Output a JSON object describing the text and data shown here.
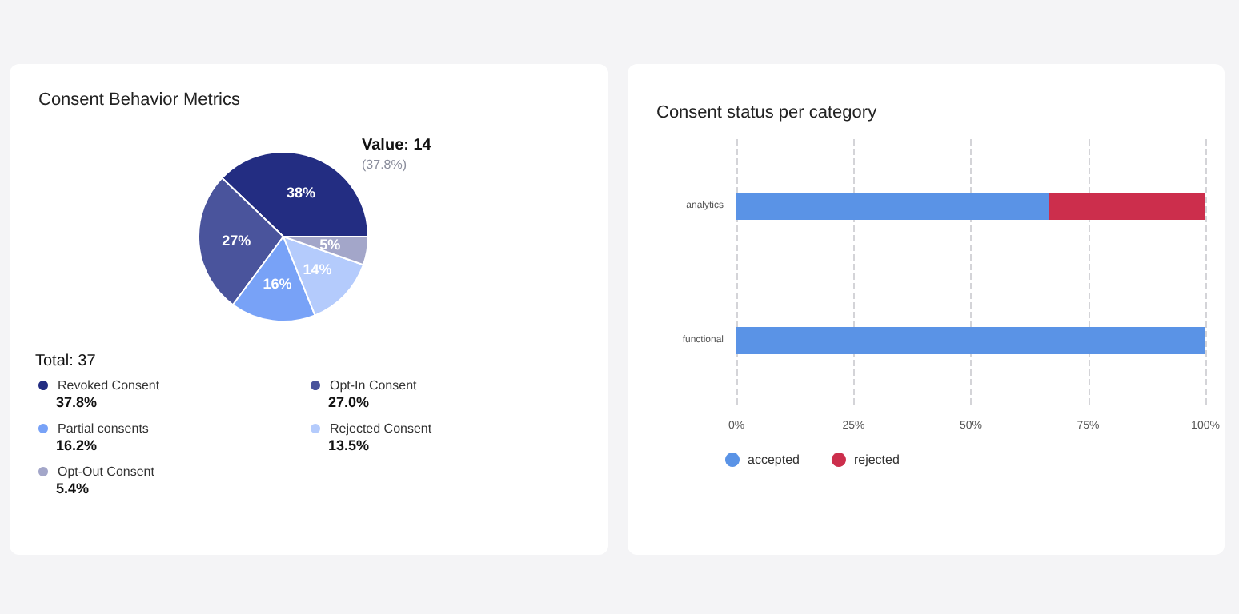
{
  "chart_data": [
    {
      "type": "pie",
      "title": "Consent Behavior Metrics",
      "categories": [
        "Revoked Consent",
        "Opt-In Consent",
        "Partial consents",
        "Rejected Consent",
        "Opt-Out Consent"
      ],
      "values": [
        37.8,
        27.0,
        16.2,
        13.5,
        5.4
      ],
      "colors": [
        "#232d82",
        "#4a549c",
        "#78a2f7",
        "#b4cbfc",
        "#a3a6c9"
      ],
      "value_labels": [
        "38%",
        "27%",
        "16%",
        "14%",
        "5%"
      ],
      "legend": "bottom",
      "annotations": [
        "Value: 14",
        "(37.8%)",
        "Total: 37",
        "37.8%",
        "27.0%",
        "16.2%",
        "13.5%",
        "5.4%"
      ]
    },
    {
      "type": "bar",
      "title": "Consent status per category",
      "orientation": "horizontal",
      "stacked": true,
      "categories": [
        "analytics",
        "functional"
      ],
      "series": [
        {
          "name": "accepted",
          "color": "#5a93e6",
          "values": [
            66.7,
            100
          ]
        },
        {
          "name": "rejected",
          "color": "#cc2e4c",
          "values": [
            33.3,
            0
          ]
        }
      ],
      "xlim": [
        0,
        100
      ],
      "xticks": [
        {
          "value": 0,
          "label": "0%"
        },
        {
          "value": 25,
          "label": "25%"
        },
        {
          "value": 50,
          "label": "50%"
        },
        {
          "value": 75,
          "label": "75%"
        },
        {
          "value": 100,
          "label": "100%"
        }
      ],
      "grid": "x",
      "legend": "bottom left"
    }
  ]
}
